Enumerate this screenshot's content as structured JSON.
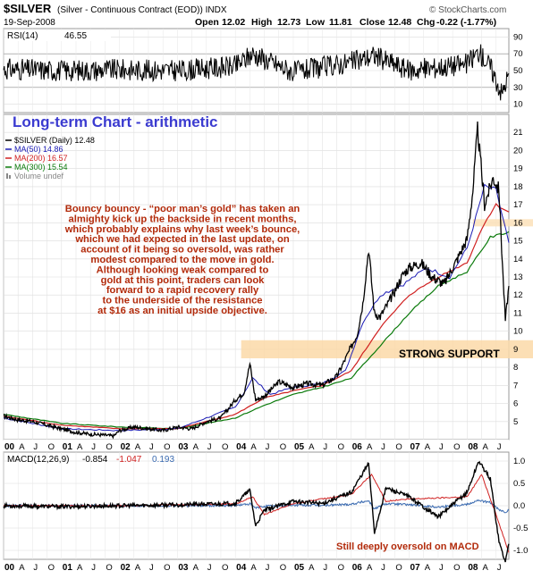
{
  "header": {
    "symbol": "$SILVER",
    "description": "(Silver - Continuous Contract (EOD)) INDX",
    "watermark": "© StockCharts.com",
    "date": "19-Sep-2008",
    "quote": {
      "open_label": "Open",
      "open": "12.02",
      "high_label": "High",
      "high": "12.73",
      "low_label": "Low",
      "low": "11.81",
      "close_label": "Close",
      "close": "12.48",
      "chg_label": "Chg",
      "chg": "-0.22 (-1.77%)"
    }
  },
  "rsi": {
    "label": "RSI(14)",
    "value": "46.55",
    "ticks": [
      "90",
      "70",
      "50",
      "30",
      "10"
    ],
    "colors": {
      "line": "#000000",
      "band": "#000000"
    }
  },
  "main": {
    "overlay_title": "Long-term Chart - arithmetic",
    "legend": [
      {
        "label": "$SILVER (Daily) 12.48",
        "color": "#000000",
        "icon": "line"
      },
      {
        "label": "MA(50) 14.86",
        "color": "#1a1ab4",
        "icon": "line"
      },
      {
        "label": "MA(200) 16.57",
        "color": "#d02020",
        "icon": "line"
      },
      {
        "label": "MA(300) 15.54",
        "color": "#0a7a0a",
        "icon": "line"
      },
      {
        "label": "Volume undef",
        "color": "#888888",
        "icon": "bars"
      }
    ],
    "annotation_lines": [
      "Bouncy bouncy - “poor man’s gold” has taken an",
      "almighty kick up the backside in recent months,",
      "which probably explains why last week’s bounce,",
      "which we had expected in the last update, on",
      "account of it being so oversold, was rather",
      "modest compared to the move in gold.",
      "Although looking weak compared to",
      "gold at this point, traders can look",
      "forward to a rapid recovery rally",
      "to the underside of the resistance",
      "at $16 as an initial upside objective."
    ],
    "support_label": "STRONG SUPPORT",
    "colors": {
      "annotation": "#b22a0a",
      "title": "#3b3bd0",
      "support_zone": "#fbd9a8",
      "resistance_zone": "#fbe0b8"
    }
  },
  "macd": {
    "label": "MACD(12,26,9)",
    "macd_value": "-0.854",
    "signal_value": "-1.047",
    "hist_value": "0.193",
    "ticks": [
      "1.0",
      "0.5",
      "0.0",
      "-0.5",
      "-1.0"
    ],
    "note": "Still deeply oversold on MACD",
    "colors": {
      "macd": "#000000",
      "signal": "#d02020",
      "hist": "#3a6ab0",
      "note": "#b22a0a"
    }
  },
  "x_axis": {
    "labels": [
      "00",
      "A",
      "J",
      "O",
      "01",
      "A",
      "J",
      "O",
      "02",
      "A",
      "J",
      "O",
      "03",
      "A",
      "J",
      "O",
      "04",
      "A",
      "J",
      "O",
      "05",
      "A",
      "J",
      "O",
      "06",
      "A",
      "J",
      "O",
      "07",
      "A",
      "J",
      "O",
      "08",
      "A",
      "J"
    ]
  },
  "chart_data": {
    "type": "line",
    "title": "$SILVER (Silver - Continuous Contract (EOD)) INDX",
    "xlabel": "",
    "ylabel": "",
    "x_range": [
      2000.0,
      2008.72
    ],
    "ylim": [
      4,
      22
    ],
    "y_ticks": [
      5,
      6,
      7,
      8,
      9,
      10,
      11,
      12,
      13,
      14,
      15,
      16,
      17,
      18,
      19,
      20,
      21
    ],
    "grid": true,
    "legend_placement": "top-left",
    "support_zone": [
      8.5,
      9.5
    ],
    "resistance_zone": [
      15.8,
      16.2
    ],
    "price": {
      "name": "$SILVER (Daily) 12.48",
      "x": [
        2000.0,
        2000.25,
        2000.5,
        2000.75,
        2001.0,
        2001.25,
        2001.5,
        2001.75,
        2001.9,
        2002.0,
        2002.25,
        2002.5,
        2002.75,
        2003.0,
        2003.25,
        2003.5,
        2003.75,
        2004.0,
        2004.15,
        2004.25,
        2004.35,
        2004.5,
        2004.75,
        2005.0,
        2005.25,
        2005.5,
        2005.75,
        2005.95,
        2006.1,
        2006.2,
        2006.3,
        2006.4,
        2006.5,
        2006.7,
        2006.9,
        2007.0,
        2007.2,
        2007.4,
        2007.6,
        2007.8,
        2008.0,
        2008.1,
        2008.18,
        2008.3,
        2008.45,
        2008.55,
        2008.62,
        2008.66,
        2008.72
      ],
      "values": [
        5.3,
        5.1,
        5.0,
        4.8,
        4.6,
        4.4,
        4.3,
        4.25,
        4.2,
        4.5,
        4.7,
        4.6,
        4.5,
        4.7,
        4.6,
        5.0,
        5.2,
        6.2,
        6.6,
        8.2,
        6.2,
        6.4,
        7.2,
        6.9,
        7.1,
        7.0,
        7.5,
        8.8,
        9.8,
        11.5,
        14.6,
        11.0,
        10.8,
        11.9,
        13.2,
        13.5,
        13.8,
        13.0,
        12.6,
        13.8,
        15.1,
        17.8,
        21.2,
        17.0,
        18.5,
        17.8,
        13.0,
        10.6,
        12.5
      ]
    },
    "ma50": {
      "name": "MA(50) 14.86",
      "x": [
        2000.0,
        2001.0,
        2002.0,
        2003.0,
        2004.0,
        2004.3,
        2004.6,
        2005.0,
        2005.5,
        2005.9,
        2006.2,
        2006.5,
        2006.9,
        2007.3,
        2007.7,
        2008.0,
        2008.3,
        2008.5,
        2008.72
      ],
      "values": [
        5.2,
        4.6,
        4.5,
        4.6,
        5.8,
        7.4,
        6.5,
        6.9,
        7.1,
        7.8,
        10.5,
        12.0,
        12.6,
        13.5,
        13.0,
        14.6,
        18.0,
        17.8,
        14.9
      ]
    },
    "ma200": {
      "name": "MA(200) 16.57",
      "x": [
        2000.0,
        2001.0,
        2002.0,
        2003.0,
        2004.0,
        2004.5,
        2005.0,
        2005.5,
        2006.0,
        2006.5,
        2007.0,
        2007.5,
        2008.0,
        2008.3,
        2008.5,
        2008.72
      ],
      "values": [
        5.3,
        4.8,
        4.6,
        4.6,
        5.4,
        6.3,
        6.7,
        7.0,
        7.8,
        10.2,
        12.0,
        13.0,
        13.8,
        16.0,
        17.0,
        16.6
      ]
    },
    "ma300": {
      "name": "MA(300) 15.54",
      "x": [
        2000.0,
        2001.0,
        2002.0,
        2003.0,
        2004.0,
        2004.5,
        2005.0,
        2005.5,
        2006.0,
        2006.5,
        2007.0,
        2007.5,
        2008.0,
        2008.4,
        2008.72
      ],
      "values": [
        5.4,
        4.9,
        4.7,
        4.6,
        5.2,
        5.9,
        6.5,
        6.9,
        7.4,
        9.2,
        11.0,
        12.5,
        13.3,
        15.2,
        15.5
      ]
    },
    "rsi": {
      "ylim": [
        0,
        100
      ],
      "x": [
        2000.0,
        2001.0,
        2002.0,
        2003.0,
        2004.0,
        2004.3,
        2005.0,
        2006.0,
        2006.4,
        2007.0,
        2008.0,
        2008.2,
        2008.4,
        2008.6,
        2008.72
      ],
      "values": [
        52,
        50,
        51,
        50,
        55,
        70,
        48,
        60,
        68,
        50,
        58,
        72,
        55,
        22,
        46.55
      ]
    },
    "macd": {
      "ylim": [
        -1.2,
        1.2
      ],
      "x": [
        2000.0,
        2001.0,
        2002.0,
        2003.0,
        2004.0,
        2004.25,
        2004.35,
        2004.5,
        2005.0,
        2005.5,
        2006.0,
        2006.3,
        2006.4,
        2006.6,
        2007.0,
        2007.5,
        2008.0,
        2008.2,
        2008.4,
        2008.55,
        2008.62,
        2008.66,
        2008.72
      ],
      "values": [
        0.0,
        -0.02,
        0.0,
        0.02,
        0.05,
        0.35,
        -0.45,
        -0.1,
        0.1,
        0.05,
        0.3,
        0.95,
        -0.6,
        0.4,
        0.2,
        -0.25,
        0.3,
        1.0,
        0.6,
        -0.8,
        -1.1,
        -1.25,
        -0.854
      ]
    },
    "signal": {
      "name": "MACD(12,26,9)",
      "values_note": "signal",
      "x": [
        2000.0,
        2001.0,
        2002.0,
        2003.0,
        2004.0,
        2004.3,
        2004.5,
        2005.0,
        2006.0,
        2006.35,
        2006.6,
        2007.0,
        2008.0,
        2008.25,
        2008.5,
        2008.72
      ],
      "values": [
        0.0,
        0.0,
        0.0,
        0.02,
        0.04,
        0.2,
        -0.2,
        0.05,
        0.25,
        0.7,
        0.1,
        0.15,
        0.2,
        0.7,
        -0.2,
        -1.047
      ]
    }
  }
}
